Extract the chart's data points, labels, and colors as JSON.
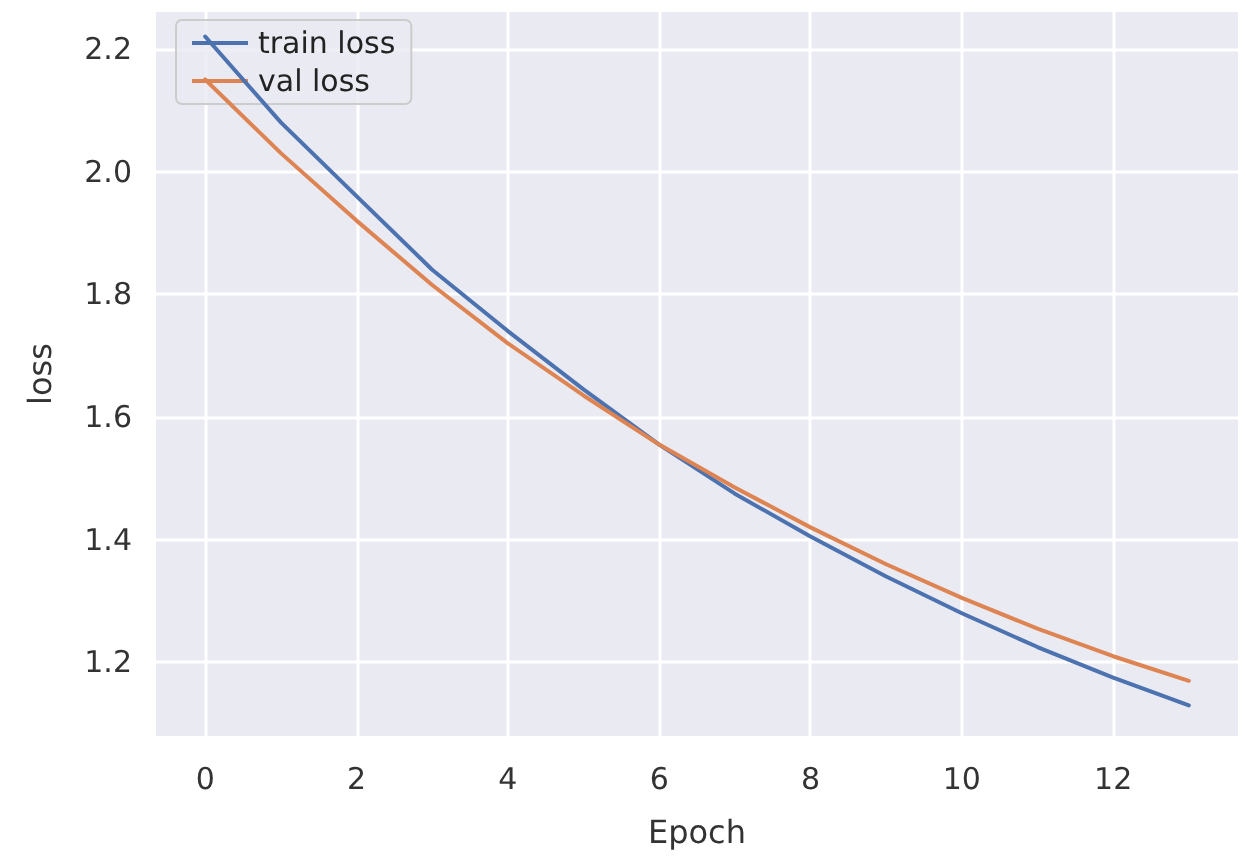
{
  "chart_data": {
    "type": "line",
    "xlabel": "Epoch",
    "ylabel": "loss",
    "x": [
      0,
      1,
      2,
      3,
      4,
      5,
      6,
      7,
      8,
      9,
      10,
      11,
      12,
      13
    ],
    "series": [
      {
        "name": "train loss",
        "color": "#4c72b0",
        "values": [
          2.22,
          2.08,
          1.96,
          1.84,
          1.74,
          1.645,
          1.555,
          1.475,
          1.405,
          1.34,
          1.28,
          1.225,
          1.175,
          1.13
        ]
      },
      {
        "name": "val loss",
        "color": "#dd8452",
        "values": [
          2.15,
          2.03,
          1.92,
          1.815,
          1.72,
          1.635,
          1.555,
          1.485,
          1.42,
          1.36,
          1.305,
          1.255,
          1.21,
          1.17
        ]
      }
    ],
    "xlim": [
      -0.65,
      13.65
    ],
    "xticks": [
      0,
      2,
      4,
      6,
      8,
      10,
      12
    ],
    "ylim": [
      1.08,
      2.26
    ],
    "yticks": [
      {
        "value": 1.2,
        "label": "1.2"
      },
      {
        "value": 1.4,
        "label": "1.4"
      },
      {
        "value": 1.6,
        "label": "1.6"
      },
      {
        "value": 1.8,
        "label": "1.8"
      },
      {
        "value": 2.0,
        "label": "2.0"
      },
      {
        "value": 2.2,
        "label": "2.2"
      }
    ],
    "grid": true,
    "legend": "top left",
    "marker": "none",
    "line_style": "solid"
  }
}
